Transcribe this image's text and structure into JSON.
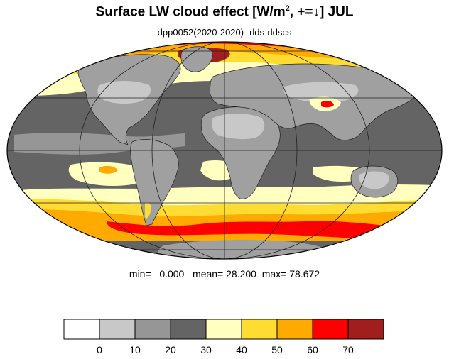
{
  "title": {
    "main": "Surface LW cloud effect [W/m",
    "superscript": "2",
    "rest": ", +=↓]  JUL"
  },
  "subtitle": {
    "run": "dpp0052(2020-2020)",
    "variable": "rlds-rldscs"
  },
  "stats": {
    "min_label": "min=",
    "min": "0.000",
    "mean_label": "mean=",
    "mean": "28.200",
    "max_label": "max=",
    "max": "78.672"
  },
  "colorbar": {
    "levels": [
      "0",
      "10",
      "20",
      "30",
      "40",
      "50",
      "60",
      "70"
    ],
    "colors": [
      "#ffffff",
      "#c8c8c8",
      "#969696",
      "#646464",
      "#ffffc0",
      "#ffdc32",
      "#ffaa00",
      "#ff0000",
      "#a01e1e"
    ]
  },
  "map": {
    "projection": "Mollweide",
    "colors": {
      "ocean_base": "#646464",
      "land": "#a0a0a0",
      "land_light": "#c8c8c8",
      "yellow_light": "#ffffc0",
      "yellow": "#ffdc32",
      "orange": "#ffaa00",
      "red": "#ff0000",
      "dark_red": "#a01e1e",
      "grid": "#202020"
    }
  }
}
